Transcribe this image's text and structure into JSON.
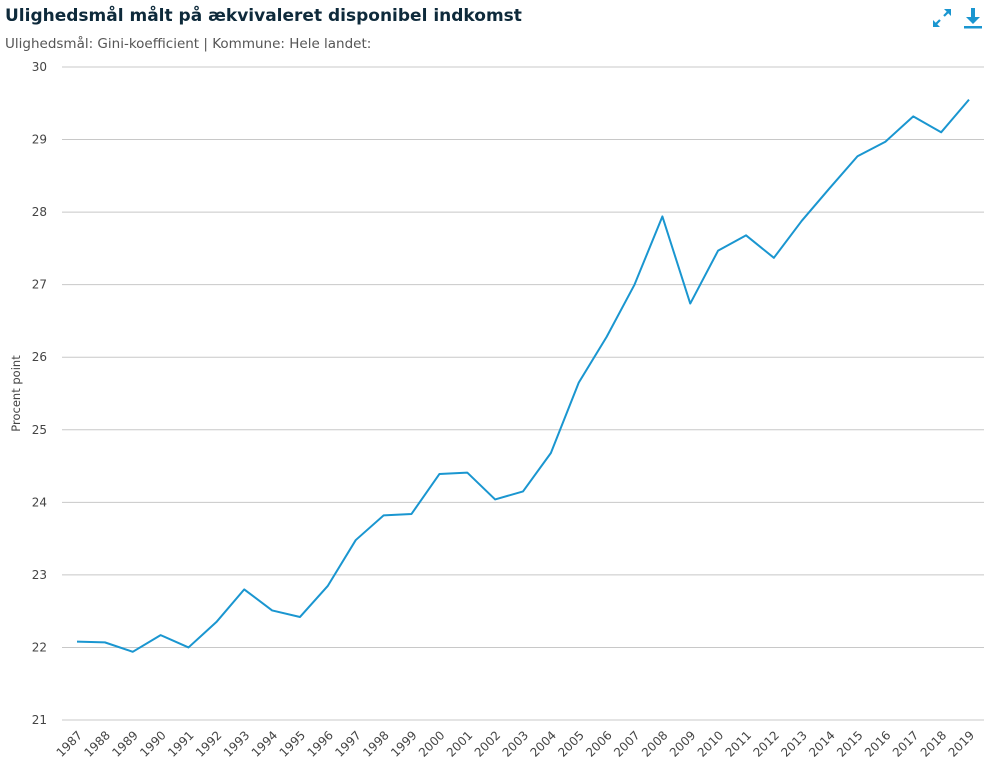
{
  "title": "Ulighedsmål målt på ækvivaleret disponibel indkomst",
  "subtitle": "Ulighedsmål: Gini-koefficient | Kommune: Hele landet:",
  "toolbar": {
    "expand_icon": "expand-arrows-icon",
    "download_icon": "download-arrow-icon"
  },
  "colors": {
    "line": "#1a96d0",
    "grid": "#c8c8c8",
    "title": "#0e2a3b",
    "icon": "#1a96d0"
  },
  "chart_data": {
    "type": "line",
    "ylabel": "Procent point",
    "xlabel": "",
    "ylim": [
      21,
      30
    ],
    "yticks": [
      21,
      22,
      23,
      24,
      25,
      26,
      27,
      28,
      29,
      30
    ],
    "grid": true,
    "categories": [
      "1987",
      "1988",
      "1989",
      "1990",
      "1991",
      "1992",
      "1993",
      "1994",
      "1995",
      "1996",
      "1997",
      "1998",
      "1999",
      "2000",
      "2001",
      "2002",
      "2003",
      "2004",
      "2005",
      "2006",
      "2007",
      "2008",
      "2009",
      "2010",
      "2011",
      "2012",
      "2013",
      "2014",
      "2015",
      "2016",
      "2017",
      "2018",
      "2019"
    ],
    "series": [
      {
        "values": [
          22.08,
          22.07,
          21.94,
          22.17,
          22.0,
          22.35,
          22.8,
          22.51,
          22.42,
          22.85,
          23.48,
          23.82,
          23.84,
          24.39,
          24.41,
          24.04,
          24.15,
          24.68,
          25.65,
          26.28,
          27.0,
          27.94,
          26.74,
          27.47,
          27.68,
          27.37,
          27.88,
          28.33,
          28.77,
          28.97,
          29.32,
          29.1,
          29.55
        ]
      }
    ]
  }
}
